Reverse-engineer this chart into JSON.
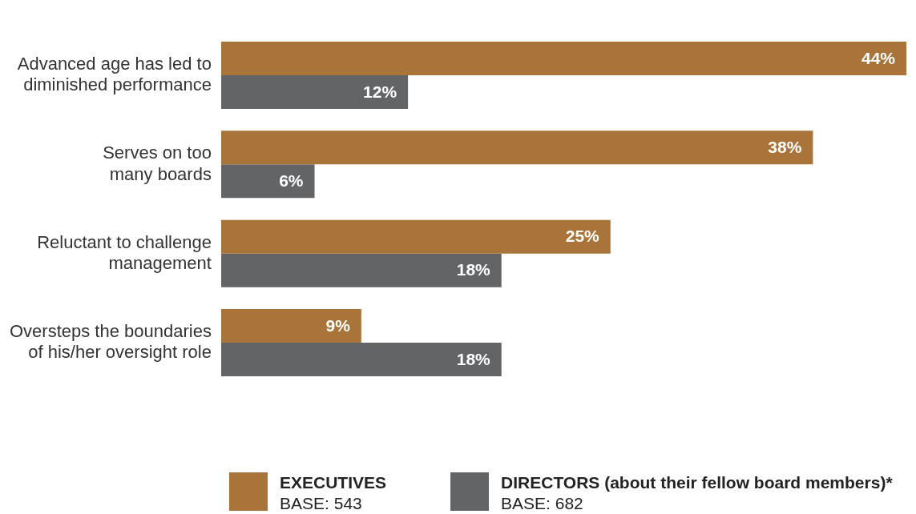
{
  "chart_data": {
    "type": "bar",
    "orientation": "horizontal",
    "categories": [
      "Advanced age has led to diminished performance",
      "Serves on too many boards",
      "Reluctant to challenge management",
      "Oversteps the boundaries of his/her oversight role"
    ],
    "series": [
      {
        "name": "EXECUTIVES",
        "color": "#a97439",
        "values": [
          44,
          38,
          25,
          9
        ],
        "value_labels": [
          "44%",
          "38%",
          "25%",
          "9%"
        ]
      },
      {
        "name": "DIRECTORS (about their fellow board members)*",
        "color": "#636466",
        "values": [
          12,
          6,
          18,
          18
        ],
        "value_labels": [
          "12%",
          "6%",
          "18%",
          "18%"
        ]
      }
    ],
    "tick_labels": "y",
    "legend": "bottom",
    "annotations": [
      "BASE: 543",
      "BASE: 682"
    ]
  }
}
